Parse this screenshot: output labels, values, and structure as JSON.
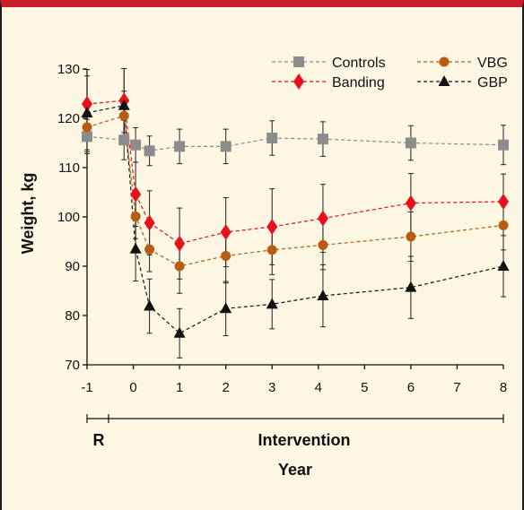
{
  "chart_data": {
    "type": "line",
    "title": "",
    "xlabel": "Year",
    "ylabel": "Weight, kg",
    "phase_labels": [
      "R",
      "Intervention"
    ],
    "xlim": [
      -1,
      8
    ],
    "ylim": [
      70,
      130
    ],
    "x_ticks": [
      -1,
      0,
      1,
      2,
      3,
      4,
      5,
      6,
      7,
      8
    ],
    "y_ticks": [
      70,
      80,
      90,
      100,
      110,
      120,
      130
    ],
    "legend_position": "top-right",
    "grid": false,
    "series": [
      {
        "name": "Controls",
        "color": "#8c8c8c",
        "marker": "square",
        "x": [
          -1,
          -0.2,
          0.05,
          0.35,
          1,
          2,
          3,
          4.1,
          6,
          8
        ],
        "y": [
          116.3,
          115.6,
          114.6,
          113.4,
          114.3,
          114.3,
          116.0,
          115.8,
          115.0,
          114.6
        ],
        "err": [
          3.5,
          4.0,
          3.5,
          3.0,
          3.5,
          3.5,
          3.5,
          3.5,
          3.5,
          4.0
        ]
      },
      {
        "name": "Banding",
        "color": "#e8101a",
        "marker": "diamond",
        "x": [
          -1,
          -0.2,
          0.05,
          0.35,
          1,
          2,
          3,
          4.1,
          6,
          8
        ],
        "y": [
          122.9,
          123.6,
          104.6,
          98.8,
          94.6,
          96.9,
          98.0,
          99.7,
          102.8,
          103.1
        ],
        "err": [
          7.0,
          6.5,
          6.5,
          6.5,
          7.2,
          7.0,
          7.7,
          6.9,
          6.0,
          5.6
        ]
      },
      {
        "name": "VBG",
        "color": "#b85c12",
        "marker": "circle",
        "x": [
          -1,
          -0.2,
          0.05,
          0.35,
          1,
          2,
          3,
          4.1,
          6,
          8
        ],
        "y": [
          118.2,
          120.5,
          100.1,
          93.4,
          90.0,
          92.1,
          93.3,
          94.3,
          96.0,
          98.3
        ],
        "err": [
          5.0,
          5.0,
          4.5,
          4.5,
          5.5,
          5.5,
          5.0,
          5.0,
          5.0,
          5.0
        ]
      },
      {
        "name": "GBP",
        "color": "#111111",
        "marker": "triangle",
        "x": [
          -1,
          -0.2,
          0.05,
          0.35,
          1,
          2,
          3,
          4.1,
          6,
          8
        ],
        "y": [
          121.1,
          122.6,
          93.5,
          81.9,
          76.4,
          81.4,
          82.3,
          84.0,
          85.7,
          90.0
        ],
        "err": [
          7.5,
          7.5,
          6.5,
          5.5,
          5.0,
          5.5,
          5.0,
          6.3,
          6.3,
          6.2
        ]
      }
    ]
  }
}
